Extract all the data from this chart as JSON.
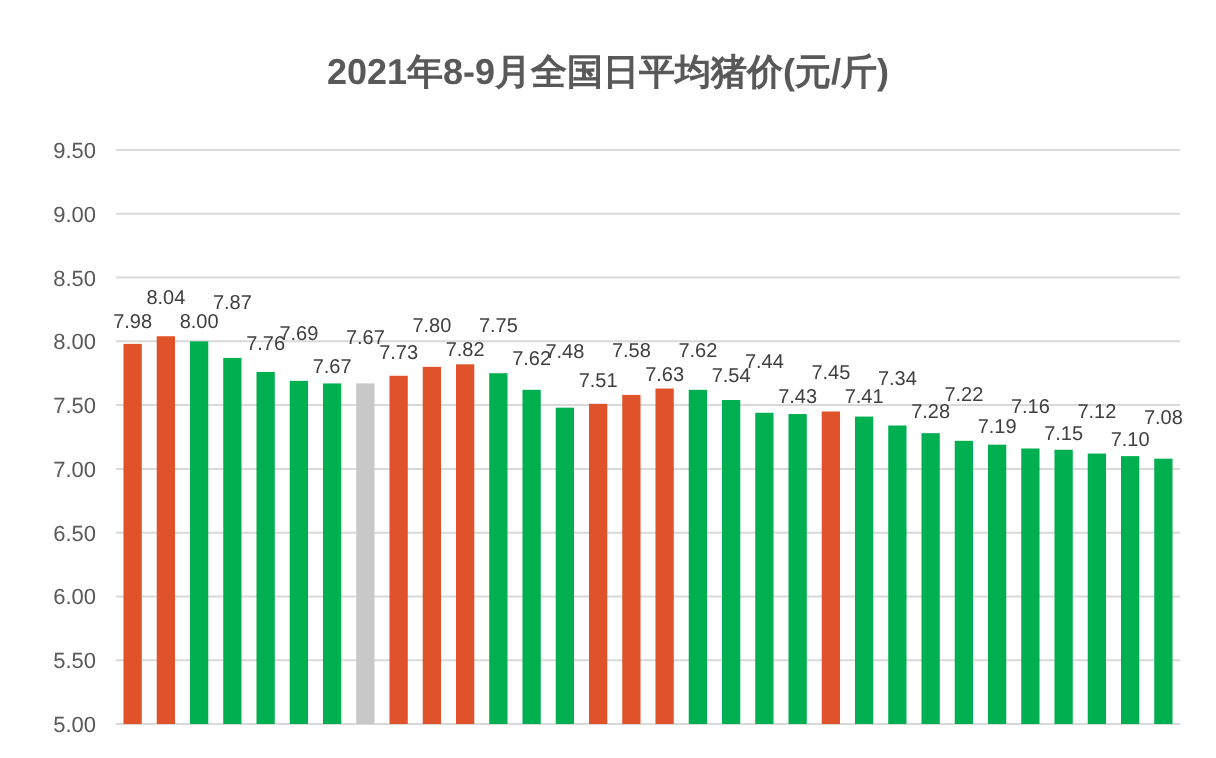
{
  "chart_data": {
    "type": "bar",
    "title": "2021年8-9月全国日平均猪价(元/斤)",
    "categories": [
      null,
      null,
      null,
      null,
      null,
      null,
      null,
      null,
      null,
      null,
      null,
      null,
      null,
      null,
      null,
      null,
      null,
      null,
      null,
      null,
      null,
      null,
      null,
      null,
      null,
      null,
      null,
      null,
      null,
      null,
      null,
      null
    ],
    "values": [
      7.98,
      8.04,
      8.0,
      7.87,
      7.76,
      7.69,
      7.67,
      7.67,
      7.73,
      7.8,
      7.82,
      7.75,
      7.62,
      7.48,
      7.51,
      7.58,
      7.63,
      7.62,
      7.54,
      7.44,
      7.43,
      7.45,
      7.41,
      7.34,
      7.28,
      7.22,
      7.19,
      7.16,
      7.15,
      7.12,
      7.1,
      7.08
    ],
    "value_labels": [
      "7.98",
      "8.04",
      "8.00",
      "7.87",
      "7.76",
      "7.69",
      "7.67",
      "7.67",
      "7.73",
      "7.80",
      "7.82",
      "7.75",
      "7.62",
      "7.48",
      "7.51",
      "7.58",
      "7.63",
      "7.62",
      "7.54",
      "7.44",
      "7.43",
      "7.45",
      "7.41",
      "7.34",
      "7.28",
      "7.22",
      "7.19",
      "7.16",
      "7.15",
      "7.12",
      "7.10",
      "7.08"
    ],
    "colors": [
      "#e0522a",
      "#e0522a",
      "#00b050",
      "#00b050",
      "#00b050",
      "#00b050",
      "#00b050",
      "#c8c8c8",
      "#e0522a",
      "#e0522a",
      "#e0522a",
      "#00b050",
      "#00b050",
      "#00b050",
      "#e0522a",
      "#e0522a",
      "#e0522a",
      "#00b050",
      "#00b050",
      "#00b050",
      "#00b050",
      "#e0522a",
      "#00b050",
      "#00b050",
      "#00b050",
      "#00b050",
      "#00b050",
      "#00b050",
      "#00b050",
      "#00b050",
      "#00b050",
      "#00b050"
    ],
    "ylim": [
      5,
      9.5
    ],
    "yticks": [
      {
        "value": 5,
        "label": "5.00"
      },
      {
        "value": 5.5,
        "label": "5.50"
      },
      {
        "value": 6,
        "label": "6.00"
      },
      {
        "value": 6.5,
        "label": "6.50"
      },
      {
        "value": 7,
        "label": "7.00"
      },
      {
        "value": 7.5,
        "label": "7.50"
      },
      {
        "value": 8,
        "label": "8.00"
      },
      {
        "value": 8.5,
        "label": "8.50"
      },
      {
        "value": 9,
        "label": "9.00"
      },
      {
        "value": 9.5,
        "label": "9.50"
      }
    ],
    "grid": "y"
  }
}
